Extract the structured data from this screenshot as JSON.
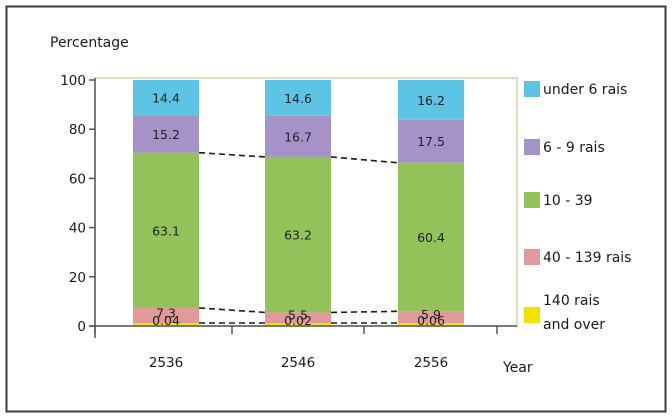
{
  "chart_data": {
    "type": "bar",
    "stacked": true,
    "ylabel": "Percentage",
    "xlabel": "Year",
    "ylim": [
      0,
      100
    ],
    "yticks": [
      0,
      20,
      40,
      60,
      80,
      100
    ],
    "categories": [
      "2536",
      "2546",
      "2556"
    ],
    "series": [
      {
        "name": "140 rais and over",
        "legend_lines": [
          "140 rais",
          "and over"
        ],
        "color": "#f2e200",
        "values": [
          0.04,
          0.02,
          0.06
        ]
      },
      {
        "name": "40 - 139 rais",
        "legend_lines": [
          "40 - 139 rais"
        ],
        "color": "#e09a9b",
        "values": [
          7.3,
          5.5,
          5.9
        ]
      },
      {
        "name": "10 - 39",
        "legend_lines": [
          "10 - 39"
        ],
        "color": "#94c25a",
        "values": [
          63.1,
          63.2,
          60.4
        ]
      },
      {
        "name": "6 - 9 rais",
        "legend_lines": [
          "6 - 9 rais"
        ],
        "color": "#a593c8",
        "values": [
          15.2,
          16.7,
          17.5
        ]
      },
      {
        "name": "under 6 rais",
        "legend_lines": [
          "under 6 rais"
        ],
        "color": "#5ec4e6",
        "values": [
          14.4,
          14.6,
          16.2
        ]
      }
    ],
    "grid": false,
    "legend_position": "right",
    "connector_lines": "dashed"
  }
}
